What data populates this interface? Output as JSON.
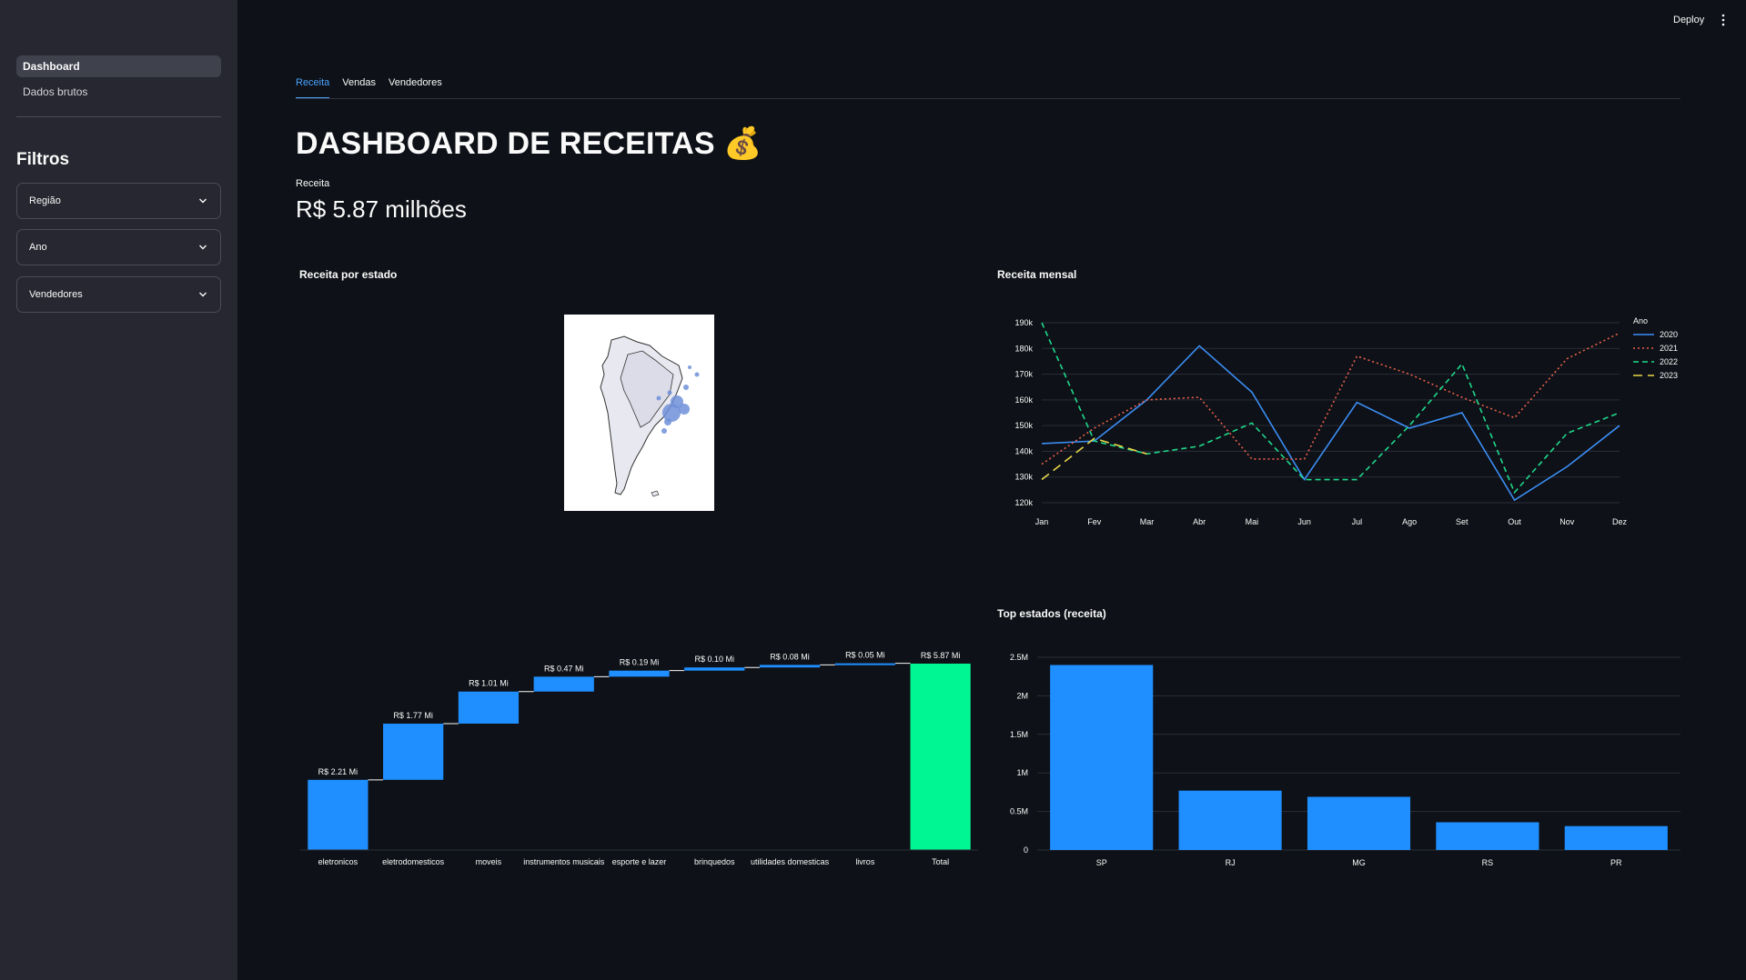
{
  "sidebar": {
    "nav": [
      {
        "label": "Dashboard",
        "active": true
      },
      {
        "label": "Dados brutos",
        "active": false
      }
    ],
    "filters_title": "Filtros",
    "filters": [
      {
        "label": "Região"
      },
      {
        "label": "Ano"
      },
      {
        "label": "Vendedores"
      }
    ]
  },
  "header": {
    "deploy_label": "Deploy",
    "menu_icon": "kebab-menu-icon"
  },
  "tabs": [
    {
      "label": "Receita",
      "active": true
    },
    {
      "label": "Vendas",
      "active": false
    },
    {
      "label": "Vendedores",
      "active": false
    }
  ],
  "page": {
    "title": "DASHBOARD DE RECEITAS 💰",
    "metric_label": "Receita",
    "metric_value": "R$ 5.87 milhões"
  },
  "colors": {
    "background": "#0e1117",
    "sidebar": "#262730",
    "accent_tab": "#4aa3ff",
    "bar_blue": "#1f8fff",
    "total_green": "#00f593"
  },
  "charts": {
    "map": {
      "title": "Receita por estado"
    },
    "monthly": {
      "title": "Receita mensal"
    },
    "top_states": {
      "title": "Top estados (receita)"
    }
  },
  "chart_data": [
    {
      "type": "scatter",
      "title": "Receita por estado",
      "kind": "bubble map of South America (Brazil states)",
      "note": "bubbles sized by revenue, largest around São Paulo region"
    },
    {
      "type": "line",
      "title": "Receita mensal",
      "categories": [
        "Jan",
        "Fev",
        "Mar",
        "Abr",
        "Mai",
        "Jun",
        "Jul",
        "Ago",
        "Set",
        "Out",
        "Nov",
        "Dez"
      ],
      "ytick_labels": [
        "120k",
        "130k",
        "140k",
        "150k",
        "160k",
        "170k",
        "180k",
        "190k"
      ],
      "ylim": [
        120000,
        190000
      ],
      "legend_title": "Ano",
      "legend_position": "right",
      "series": [
        {
          "name": "2020",
          "color": "#3b8ef5",
          "dash": "solid",
          "values": [
            143000,
            144000,
            160000,
            181000,
            163000,
            129000,
            159000,
            149000,
            155000,
            121000,
            134000,
            150000
          ]
        },
        {
          "name": "2021",
          "color": "#e8614c",
          "dash": "dot",
          "values": [
            135000,
            149000,
            160000,
            161000,
            137000,
            137000,
            177000,
            170000,
            161000,
            153000,
            176000,
            186000
          ]
        },
        {
          "name": "2022",
          "color": "#1fd98c",
          "dash": "dash",
          "values": [
            190000,
            144000,
            139000,
            142000,
            151000,
            129000,
            129000,
            150000,
            174000,
            124000,
            147000,
            155000
          ]
        },
        {
          "name": "2023",
          "color": "#e8d84a",
          "dash": "longdash",
          "values": [
            129000,
            145000,
            139000,
            null,
            null,
            null,
            null,
            null,
            null,
            null,
            null,
            null
          ]
        }
      ]
    },
    {
      "type": "bar",
      "subtype": "waterfall",
      "categories": [
        "eletronicos",
        "eletrodomesticos",
        "moveis",
        "instrumentos musicais",
        "esporte e lazer",
        "brinquedos",
        "utilidades domesticas",
        "livros",
        "Total"
      ],
      "values": [
        2.21,
        1.77,
        1.01,
        0.47,
        0.19,
        0.1,
        0.08,
        0.05,
        5.87
      ],
      "data_labels": [
        "R$ 2.21 Mi",
        "R$ 1.77 Mi",
        "R$ 1.01 Mi",
        "R$ 0.47 Mi",
        "R$ 0.19 Mi",
        "R$ 0.10 Mi",
        "R$ 0.08 Mi",
        "R$ 0.05 Mi",
        "R$ 5.87 Mi"
      ],
      "unit": "R$ milhões",
      "ylim": [
        0,
        5.87
      ]
    },
    {
      "type": "bar",
      "title": "Top estados (receita)",
      "categories": [
        "SP",
        "RJ",
        "MG",
        "RS",
        "PR"
      ],
      "values": [
        2400000,
        770000,
        690000,
        360000,
        310000
      ],
      "ytick_labels": [
        "0",
        "0.5M",
        "1M",
        "1.5M",
        "2M",
        "2.5M"
      ],
      "ylim": [
        0,
        2500000
      ]
    }
  ]
}
